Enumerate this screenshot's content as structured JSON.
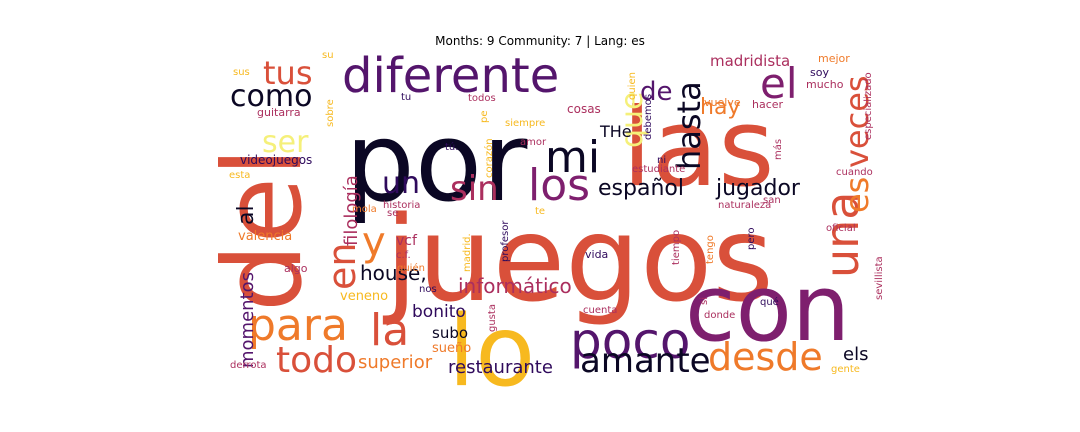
{
  "chart_data": {
    "type": "wordcloud",
    "title": "Months: 9 Community: 7 | Lang: es",
    "colormap": "inferno",
    "words": [
      {
        "text": "juegos",
        "weight": 100,
        "color": "#d9503a"
      },
      {
        "text": "por",
        "weight": 98,
        "color": "#0b0724"
      },
      {
        "text": "las",
        "weight": 95,
        "color": "#d9503a"
      },
      {
        "text": "del",
        "weight": 92,
        "color": "#d9503a"
      },
      {
        "text": "con",
        "weight": 85,
        "color": "#7e1f6e"
      },
      {
        "text": "lo",
        "weight": 80,
        "color": "#f7b91f"
      },
      {
        "text": "diferente",
        "weight": 55,
        "color": "#54156c"
      },
      {
        "text": "poco",
        "weight": 52,
        "color": "#54156c"
      },
      {
        "text": "una",
        "weight": 48,
        "color": "#d9503a"
      },
      {
        "text": "para",
        "weight": 47,
        "color": "#ef7a2a"
      },
      {
        "text": "mi",
        "weight": 46,
        "color": "#0b0724"
      },
      {
        "text": "los",
        "weight": 45,
        "color": "#7e1f6e"
      },
      {
        "text": "el",
        "weight": 44,
        "color": "#7e1f6e"
      },
      {
        "text": "la",
        "weight": 44,
        "color": "#d9503a"
      },
      {
        "text": "en",
        "weight": 43,
        "color": "#d9503a"
      },
      {
        "text": "desde",
        "weight": 42,
        "color": "#ef7a2a"
      },
      {
        "text": "y",
        "weight": 42,
        "color": "#ef7a2a"
      },
      {
        "text": "amante",
        "weight": 40,
        "color": "#0b0724"
      },
      {
        "text": "todo",
        "weight": 40,
        "color": "#d9503a"
      },
      {
        "text": "sin",
        "weight": 38,
        "color": "#ab2f5e"
      },
      {
        "text": "hasta",
        "weight": 38,
        "color": "#0b0724"
      },
      {
        "text": "veces",
        "weight": 37,
        "color": "#d9503a"
      },
      {
        "text": "es",
        "weight": 37,
        "color": "#ef7a2a"
      },
      {
        "text": "que",
        "weight": 35,
        "color": "#f5f07a"
      },
      {
        "text": "tus",
        "weight": 35,
        "color": "#d9503a"
      },
      {
        "text": "como",
        "weight": 33,
        "color": "#0b0724"
      },
      {
        "text": "un",
        "weight": 32,
        "color": "#2f0a5c"
      },
      {
        "text": "ser",
        "weight": 32,
        "color": "#f5f07a"
      },
      {
        "text": "de",
        "weight": 30,
        "color": "#54156c"
      },
      {
        "text": "español",
        "weight": 28,
        "color": "#0b0724"
      },
      {
        "text": "jugador",
        "weight": 28,
        "color": "#0b0724"
      },
      {
        "text": "hay",
        "weight": 27,
        "color": "#ef7a2a"
      },
      {
        "text": "informático",
        "weight": 24,
        "color": "#ab2f5e"
      },
      {
        "text": "house,",
        "weight": 24,
        "color": "#0b0724"
      },
      {
        "text": "al",
        "weight": 24,
        "color": "#0b0724"
      },
      {
        "text": "filología",
        "weight": 23,
        "color": "#ab2f5e"
      },
      {
        "text": "momentos",
        "weight": 22,
        "color": "#54156c"
      },
      {
        "text": "superior",
        "weight": 21,
        "color": "#ef7a2a"
      },
      {
        "text": "restaurante",
        "weight": 21,
        "color": "#2f0a5c"
      },
      {
        "text": "els",
        "weight": 20,
        "color": "#0b0724"
      },
      {
        "text": "bonito",
        "weight": 19,
        "color": "#2f0a5c"
      },
      {
        "text": "THe",
        "weight": 18,
        "color": "#0b0724"
      },
      {
        "text": "madridista",
        "weight": 17,
        "color": "#ab2f5e"
      },
      {
        "text": "subo",
        "weight": 16,
        "color": "#0b0724"
      },
      {
        "text": "sueño",
        "weight": 15,
        "color": "#ef7a2a"
      },
      {
        "text": "vcf",
        "weight": 15,
        "color": "#ab2f5e"
      },
      {
        "text": "valencia",
        "weight": 15,
        "color": "#ef7a2a"
      },
      {
        "text": "veneno",
        "weight": 14,
        "color": "#f7b91f"
      },
      {
        "text": "videojuegos",
        "weight": 14,
        "color": "#2f0a5c"
      },
      {
        "text": "cosas",
        "weight": 12,
        "color": "#ab2f5e"
      },
      {
        "text": "vuelve",
        "weight": 12,
        "color": "#ef7a2a"
      },
      {
        "text": "hacer",
        "weight": 12,
        "color": "#ab2f5e"
      },
      {
        "text": "soy",
        "weight": 12,
        "color": "#2f0a5c"
      },
      {
        "text": "mucho",
        "weight": 12,
        "color": "#ab2f5e"
      },
      {
        "text": "mejor",
        "weight": 12,
        "color": "#ef7a2a"
      },
      {
        "text": "guitarra",
        "weight": 12,
        "color": "#ab2f5e"
      },
      {
        "text": "todos",
        "weight": 12,
        "color": "#ab2f5e"
      },
      {
        "text": "tu",
        "weight": 12,
        "color": "#2f0a5c"
      },
      {
        "text": "tú.",
        "weight": 12,
        "color": "#2f0a5c"
      },
      {
        "text": "amor",
        "weight": 12,
        "color": "#ab2f5e"
      },
      {
        "text": "ni",
        "weight": 12,
        "color": "#2f0a5c"
      },
      {
        "text": "estudiante",
        "weight": 12,
        "color": "#ab2f5e"
      },
      {
        "text": "naturaleza",
        "weight": 12,
        "color": "#ab2f5e"
      },
      {
        "text": "historia",
        "weight": 12,
        "color": "#ab2f5e"
      },
      {
        "text": "mola",
        "weight": 11,
        "color": "#ef7a2a"
      },
      {
        "text": "se",
        "weight": 11,
        "color": "#ab2f5e"
      },
      {
        "text": "c.f.",
        "weight": 11,
        "color": "#ab2f5e"
      },
      {
        "text": "quién",
        "weight": 11,
        "color": "#ef7a2a"
      },
      {
        "text": "algo",
        "weight": 11,
        "color": "#ab2f5e"
      },
      {
        "text": "esta",
        "weight": 11,
        "color": "#f7b91f"
      },
      {
        "text": "sus",
        "weight": 11,
        "color": "#f7b91f"
      },
      {
        "text": "su",
        "weight": 11,
        "color": "#f7b91f"
      },
      {
        "text": "vida",
        "weight": 12,
        "color": "#2f0a5c"
      },
      {
        "text": "nos",
        "weight": 11,
        "color": "#2f0a5c"
      },
      {
        "text": "cuenta",
        "weight": 11,
        "color": "#ab2f5e"
      },
      {
        "text": "donde",
        "weight": 11,
        "color": "#ab2f5e"
      },
      {
        "text": "qué",
        "weight": 11,
        "color": "#2f0a5c"
      },
      {
        "text": "san",
        "weight": 11,
        "color": "#ab2f5e"
      },
      {
        "text": "oficial",
        "weight": 11,
        "color": "#ab2f5e"
      },
      {
        "text": "cuando",
        "weight": 11,
        "color": "#ab2f5e"
      },
      {
        "text": "gente",
        "weight": 11,
        "color": "#f7b91f"
      },
      {
        "text": "derrota",
        "weight": 11,
        "color": "#ab2f5e"
      },
      {
        "text": "te",
        "weight": 11,
        "color": "#f7b91f"
      },
      {
        "text": "sobre",
        "weight": 11,
        "color": "#f7b91f"
      },
      {
        "text": "pe",
        "weight": 11,
        "color": "#f7b91f"
      },
      {
        "text": "siempre",
        "weight": 11,
        "color": "#f7b91f"
      },
      {
        "text": "corazón",
        "weight": 11,
        "color": "#f7b91f"
      },
      {
        "text": "profesor",
        "weight": 11,
        "color": "#2f0a5c"
      },
      {
        "text": "madrid.",
        "weight": 11,
        "color": "#f7b91f"
      },
      {
        "text": "gusta",
        "weight": 11,
        "color": "#ab2f5e"
      },
      {
        "text": "quien",
        "weight": 11,
        "color": "#f7b91f"
      },
      {
        "text": "debemos",
        "weight": 11,
        "color": "#2f0a5c"
      },
      {
        "text": "tiempo",
        "weight": 11,
        "color": "#ab2f5e"
      },
      {
        "text": "tengo",
        "weight": 11,
        "color": "#ef7a2a"
      },
      {
        "text": "si",
        "weight": 11,
        "color": "#ab2f5e"
      },
      {
        "text": "pero",
        "weight": 11,
        "color": "#2f0a5c"
      },
      {
        "text": "más",
        "weight": 11,
        "color": "#ab2f5e"
      },
      {
        "text": "especializado",
        "weight": 11,
        "color": "#ab2f5e"
      },
      {
        "text": "sevillista",
        "weight": 11,
        "color": "#ab2f5e"
      }
    ]
  }
}
